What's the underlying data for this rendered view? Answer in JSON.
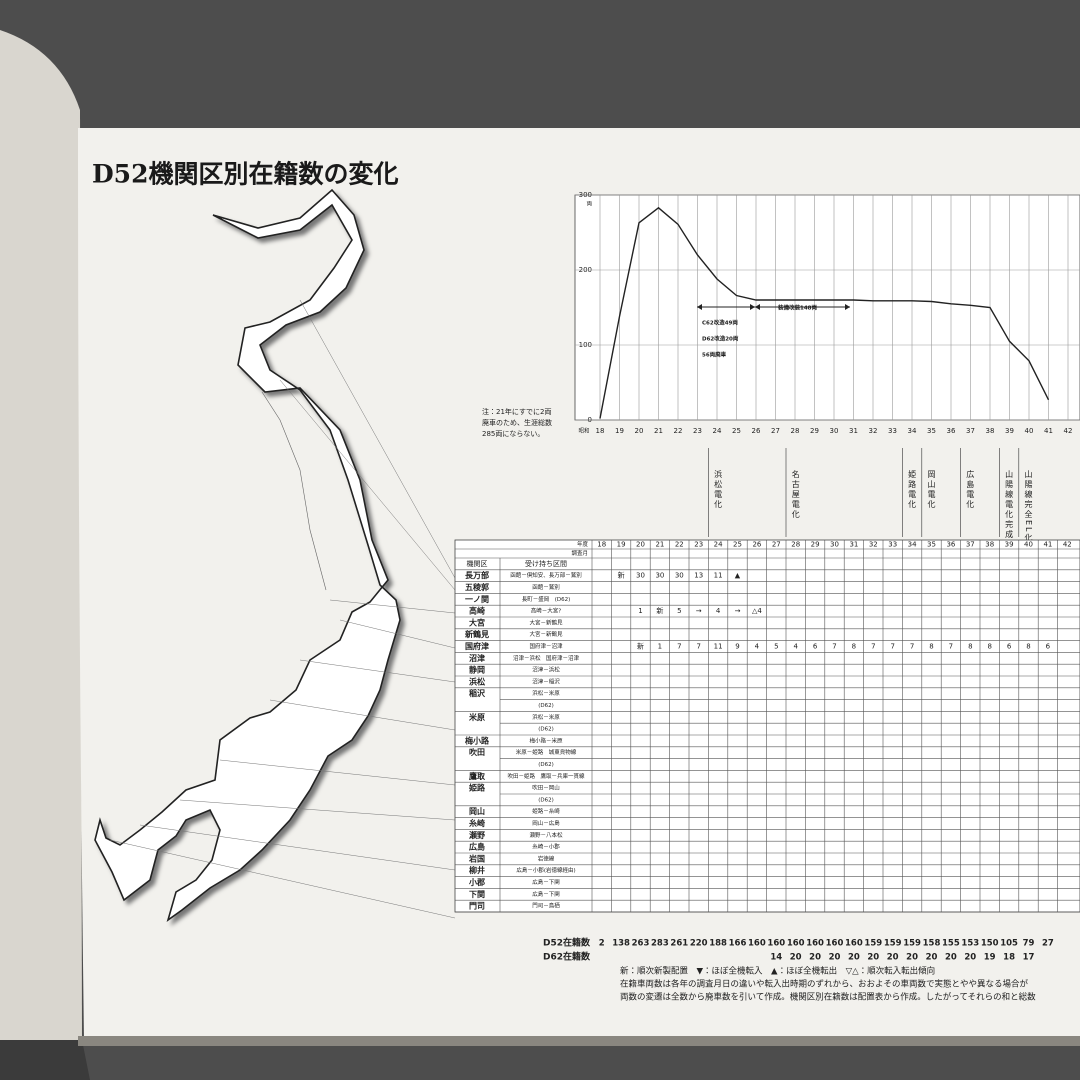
{
  "title": "D52機関区別在籍数の変化",
  "chart_data": {
    "type": "line",
    "x": [
      18,
      19,
      20,
      21,
      22,
      23,
      24,
      25,
      26,
      27,
      28,
      29,
      30,
      31,
      32,
      33,
      34,
      35,
      36,
      37,
      38,
      39,
      40,
      41
    ],
    "values": [
      2,
      138,
      263,
      283,
      261,
      220,
      188,
      166,
      160,
      160,
      160,
      160,
      160,
      160,
      159,
      159,
      159,
      158,
      155,
      153,
      150,
      105,
      79,
      27
    ],
    "color": "#222222",
    "xlim": [
      18,
      42.6
    ],
    "ylim": [
      0,
      300
    ],
    "xticks": [
      18,
      19,
      20,
      21,
      22,
      23,
      24,
      25,
      26,
      27,
      28,
      29,
      30,
      31,
      32,
      33,
      34,
      35,
      36,
      37,
      38,
      39,
      40,
      41,
      42
    ],
    "yticks": [
      0,
      100,
      200,
      300
    ],
    "grid": true,
    "y_unit": "両",
    "x_prefix": "昭和",
    "annotations": [
      "C62改造49両",
      "D62改造20両",
      "56両廃車",
      "装備改装148両"
    ],
    "note": [
      "注：21年にすでに2両",
      "廃車のため、生涯総数",
      "285両にならない。"
    ]
  },
  "electrification": [
    {
      "label": "浜松電化",
      "year": 24
    },
    {
      "label": "名古屋電化",
      "year": 28
    },
    {
      "label": "姫路電化",
      "year": 34
    },
    {
      "label": "岡山電化",
      "year": 35
    },
    {
      "label": "広島電化",
      "year": 37
    },
    {
      "label": "山陽線電化完成",
      "year": 39
    },
    {
      "label": "山陽線完全EL化",
      "year": 40
    }
  ],
  "table": {
    "year_header": "年度",
    "survey_header": "調査月",
    "depot_header": "機関区",
    "route_header": "受け持ち区間",
    "years": [
      18,
      19,
      20,
      21,
      22,
      23,
      24,
      25,
      26,
      27,
      28,
      29,
      30,
      31,
      32,
      33,
      34,
      35,
      36,
      37,
      38,
      39,
      40,
      41,
      42
    ],
    "rows": [
      {
        "depot": "長万部",
        "route": "函館－倶知安、長万部－鷲別",
        "cells": [
          null,
          "新",
          "30",
          "30",
          "30",
          "13",
          "11",
          "▲"
        ]
      },
      {
        "depot": "五稜郭",
        "route": "函館－鷲別"
      },
      {
        "depot": "一ノ関",
        "route": "長町－盛岡　(D62)"
      },
      {
        "depot": "高崎",
        "route": "高崎－大宮?",
        "cells": [
          null,
          null,
          "1",
          "新",
          "5",
          "→",
          "4",
          "→",
          "△4"
        ]
      },
      {
        "depot": "大宮",
        "route": "大宮－新鶴見"
      },
      {
        "depot": "新鶴見",
        "route": "大宮－新鶴見"
      },
      {
        "depot": "国府津",
        "route": "国府津－沼津",
        "cells": [
          null,
          null,
          "新",
          "1",
          "7",
          "7",
          "11",
          "9",
          "4",
          "5",
          "4",
          "6",
          "7",
          "8",
          "7",
          "7",
          "7",
          "8",
          "7",
          "8",
          "8",
          "6",
          "8",
          "6"
        ]
      },
      {
        "depot": "沼津",
        "route": "沼津－浜松　国府津－沼津"
      },
      {
        "depot": "静岡",
        "route": "沼津－浜松"
      },
      {
        "depot": "浜松",
        "route": "沼津－稲沢"
      },
      {
        "depot": "稲沢",
        "route": "浜松－米原"
      },
      {
        "depot": null,
        "route": "(D62)"
      },
      {
        "depot": "米原",
        "route": "浜松－米原"
      },
      {
        "depot": null,
        "route": "(D62)"
      },
      {
        "depot": "梅小路",
        "route": "梅小路－米原"
      },
      {
        "depot": "吹田",
        "route": "米原－姫路　城東貨物線"
      },
      {
        "depot": null,
        "route": "(D62)"
      },
      {
        "depot": "鷹取",
        "route": "吹田－姫路　鷹取－兵庫一貫線"
      },
      {
        "depot": "姫路",
        "route": "吹田－岡山"
      },
      {
        "depot": null,
        "route": "(D62)"
      },
      {
        "depot": "岡山",
        "route": "姫路－糸崎"
      },
      {
        "depot": "糸崎",
        "route": "岡山－広島"
      },
      {
        "depot": "瀬野",
        "route": "瀬野－八本松"
      },
      {
        "depot": "広島",
        "route": "糸崎－小郡"
      },
      {
        "depot": "岩国",
        "route": "岩徳線"
      },
      {
        "depot": "柳井",
        "route": "広島－小郡(岩徳線経由)"
      },
      {
        "depot": "小郡",
        "route": "広島－下関"
      },
      {
        "depot": "下関",
        "route": "広島－下関"
      },
      {
        "depot": "門司",
        "route": "門司－鳥栖"
      }
    ]
  },
  "totals": {
    "d52": {
      "label": "D52在籍数",
      "values": [
        2,
        138,
        263,
        283,
        261,
        220,
        188,
        166,
        160,
        160,
        160,
        160,
        160,
        160,
        159,
        159,
        159,
        158,
        155,
        153,
        150,
        105,
        79,
        27
      ]
    },
    "d62": {
      "label": "D62在籍数",
      "start_year": 27,
      "values": [
        14,
        20,
        20,
        20,
        20,
        20,
        20,
        20,
        20,
        20,
        20,
        19,
        18,
        17
      ]
    }
  },
  "notes": [
    "新：順次新製配置　▼：ほぼ全機転入　▲：ほぼ全機転出　▽△：順次転入転出傾向",
    "在籍車両数は各年の調査月日の違いや転入出時期のずれから、おおよその車両数で実態とやや異なる場合が",
    "両数の変遷は全数から廃車数を引いて作成。機関区別在籍数は配置表から作成。したがってそれらの和と総数"
  ]
}
